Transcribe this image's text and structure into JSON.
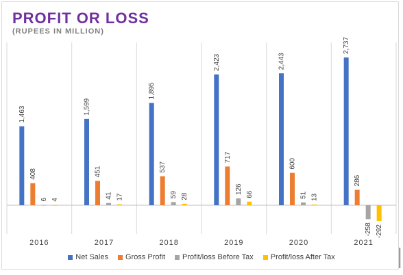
{
  "title": "PROFIT OR LOSS",
  "subtitle": "(RUPEES IN MILLION)",
  "chart_data": {
    "type": "bar",
    "title": "PROFIT OR LOSS",
    "subtitle": "(RUPEES IN MILLION)",
    "categories": [
      "2016",
      "2017",
      "2018",
      "2019",
      "2020",
      "2021"
    ],
    "series": [
      {
        "name": "Net Sales",
        "color": "#4472c4",
        "values": [
          1463,
          1599,
          1895,
          2423,
          2443,
          2737
        ],
        "labels": [
          "1,463",
          "1,599",
          "1,895",
          "2,423",
          "2,443",
          "2,737"
        ]
      },
      {
        "name": "Gross Profit",
        "color": "#ed7d31",
        "values": [
          408,
          451,
          537,
          717,
          600,
          286
        ],
        "labels": [
          "408",
          "451",
          "537",
          "717",
          "600",
          "286"
        ]
      },
      {
        "name": "Profit/loss Before Tax",
        "color": "#a5a5a5",
        "values": [
          6,
          41,
          59,
          126,
          51,
          -258
        ],
        "labels": [
          "6",
          "41",
          "59",
          "126",
          "51",
          "-258"
        ]
      },
      {
        "name": "Profit/loss After Tax",
        "color": "#ffc000",
        "values": [
          4,
          17,
          28,
          66,
          13,
          -292
        ],
        "labels": [
          "4",
          "17",
          "28",
          "66",
          "13",
          "-292"
        ]
      }
    ],
    "ylim": [
      -400,
      3000
    ],
    "grid": false,
    "category_separators": true,
    "legend": "bottom"
  }
}
